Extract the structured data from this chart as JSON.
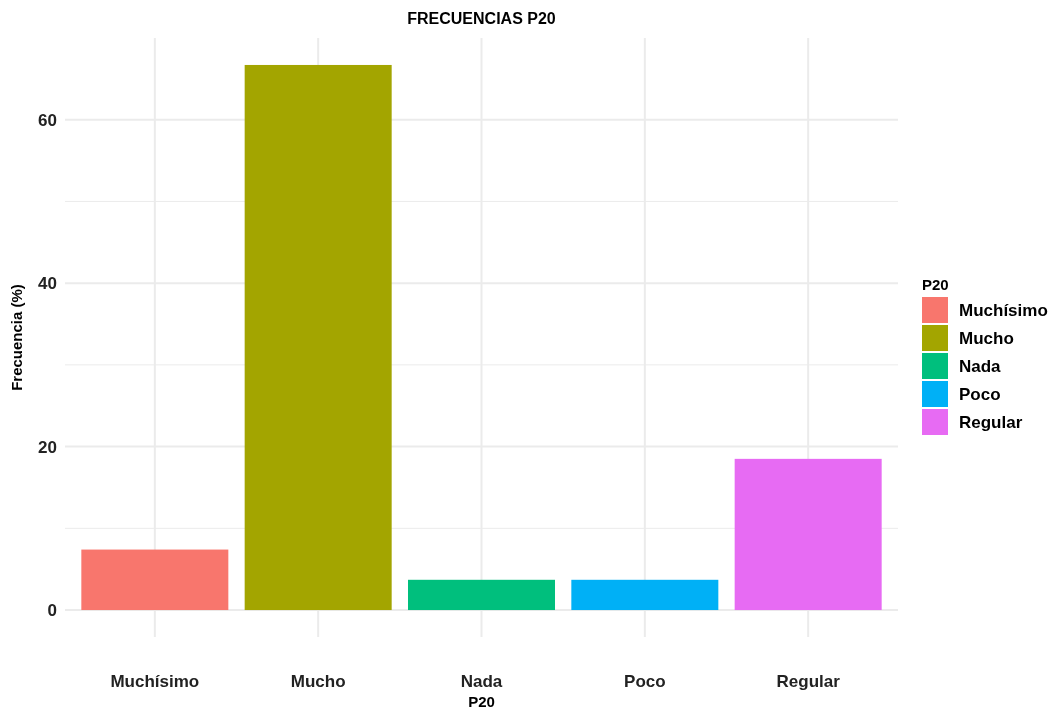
{
  "chart_data": {
    "type": "bar",
    "title": "FRECUENCIAS P20",
    "xlabel": "P20",
    "ylabel": "Frecuencia (%)",
    "legend_title": "P20",
    "categories": [
      "Muchísimo",
      "Mucho",
      "Nada",
      "Poco",
      "Regular"
    ],
    "stacked": true,
    "series": [
      {
        "name": "Muchísimo",
        "color": "#f8766d",
        "values": [
          7.4,
          null,
          null,
          null,
          null
        ]
      },
      {
        "name": "Mucho",
        "color": "#a3a500",
        "values": [
          null,
          66.7,
          null,
          null,
          null
        ]
      },
      {
        "name": "Nada",
        "color": "#00bf7d",
        "values": [
          null,
          null,
          3.7,
          null,
          null
        ]
      },
      {
        "name": "Poco",
        "color": "#00b0f6",
        "values": [
          null,
          null,
          null,
          3.7,
          null
        ]
      },
      {
        "name": "Regular",
        "color": "#e76bf3",
        "values": [
          null,
          null,
          null,
          null,
          18.5
        ]
      }
    ],
    "ylim": [
      -3.3,
      70
    ],
    "yticks": [
      0,
      {
        "value": 10,
        "label": null
      },
      20,
      {
        "value": 30,
        "label": null
      },
      40,
      {
        "value": 50,
        "label": null
      },
      60
    ],
    "grid": true,
    "legend": "right"
  }
}
